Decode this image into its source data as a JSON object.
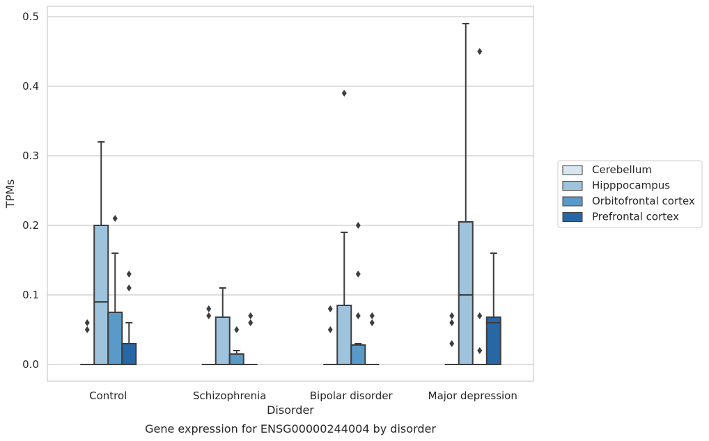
{
  "chart_data": {
    "type": "box",
    "title": "",
    "caption": "Gene expression for ENSG00000244004 by disorder",
    "xlabel": "Disorder",
    "ylabel": "TPMs",
    "ylim": [
      -0.024,
      0.515
    ],
    "yticks": [
      0.0,
      0.1,
      0.2,
      0.3,
      0.4,
      0.5
    ],
    "ytick_labels": [
      "0.0",
      "0.1",
      "0.2",
      "0.3",
      "0.4",
      "0.5"
    ],
    "grid": true,
    "legend_position": "right",
    "categories": [
      "Control",
      "Schizophrenia",
      "Bipolar disorder",
      "Major depression"
    ],
    "series": [
      {
        "name": "Cerebellum",
        "color": "#d8e6f2",
        "boxes": [
          {
            "q1": 0,
            "median": 0,
            "q3": 0,
            "whisker_low": 0,
            "whisker_high": 0,
            "outliers": [
              0.05,
              0.06
            ]
          },
          {
            "q1": 0,
            "median": 0,
            "q3": 0,
            "whisker_low": 0,
            "whisker_high": 0,
            "outliers": [
              0.07,
              0.08
            ]
          },
          {
            "q1": 0,
            "median": 0,
            "q3": 0,
            "whisker_low": 0,
            "whisker_high": 0,
            "outliers": [
              0.05,
              0.08
            ]
          },
          {
            "q1": 0,
            "median": 0,
            "q3": 0,
            "whisker_low": 0,
            "whisker_high": 0,
            "outliers": [
              0.03,
              0.06,
              0.07
            ]
          }
        ]
      },
      {
        "name": "Hipppocampus",
        "color": "#9dc3dd",
        "boxes": [
          {
            "q1": 0,
            "median": 0.09,
            "q3": 0.2,
            "whisker_low": 0,
            "whisker_high": 0.32,
            "outliers": []
          },
          {
            "q1": 0,
            "median": 0,
            "q3": 0.068,
            "whisker_low": 0,
            "whisker_high": 0.11,
            "outliers": []
          },
          {
            "q1": 0,
            "median": 0,
            "q3": 0.085,
            "whisker_low": 0,
            "whisker_high": 0.19,
            "outliers": [
              0.39
            ]
          },
          {
            "q1": 0,
            "median": 0.1,
            "q3": 0.205,
            "whisker_low": 0,
            "whisker_high": 0.49,
            "outliers": []
          }
        ]
      },
      {
        "name": "Orbitofrontal cortex",
        "color": "#5a9ac8",
        "boxes": [
          {
            "q1": 0,
            "median": 0,
            "q3": 0.075,
            "whisker_low": 0,
            "whisker_high": 0.16,
            "outliers": [
              0.21
            ]
          },
          {
            "q1": 0,
            "median": 0,
            "q3": 0.015,
            "whisker_low": 0,
            "whisker_high": 0.02,
            "outliers": [
              0.05
            ]
          },
          {
            "q1": 0,
            "median": 0,
            "q3": 0.028,
            "whisker_low": 0,
            "whisker_high": 0.03,
            "outliers": [
              0.07,
              0.13,
              0.2
            ]
          },
          {
            "q1": 0,
            "median": 0,
            "q3": 0,
            "whisker_low": 0,
            "whisker_high": 0,
            "outliers": [
              0.02,
              0.07,
              0.45
            ]
          }
        ]
      },
      {
        "name": "Prefrontal cortex",
        "color": "#2767a6",
        "boxes": [
          {
            "q1": 0,
            "median": 0,
            "q3": 0.03,
            "whisker_low": 0,
            "whisker_high": 0.06,
            "outliers": [
              0.11,
              0.13
            ]
          },
          {
            "q1": 0,
            "median": 0,
            "q3": 0,
            "whisker_low": 0,
            "whisker_high": 0,
            "outliers": [
              0.06,
              0.07
            ]
          },
          {
            "q1": 0,
            "median": 0,
            "q3": 0,
            "whisker_low": 0,
            "whisker_high": 0,
            "outliers": [
              0.06,
              0.07
            ]
          },
          {
            "q1": 0,
            "median": 0.06,
            "q3": 0.068,
            "whisker_low": 0,
            "whisker_high": 0.16,
            "outliers": []
          }
        ]
      }
    ]
  }
}
